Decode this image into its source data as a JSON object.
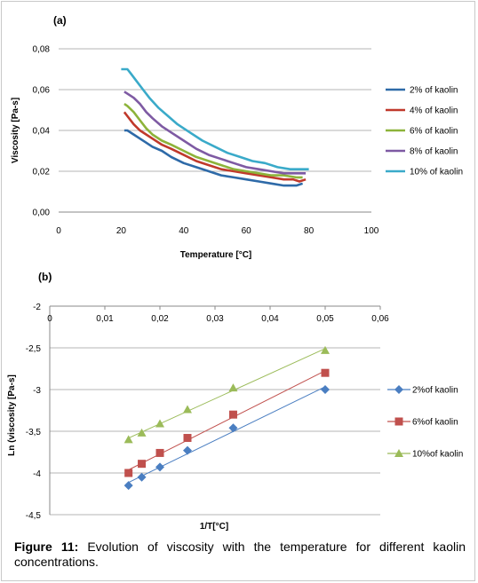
{
  "caption": {
    "label": "Figure 11:",
    "text": " Evolution of viscosity with the temperature for different kaolin concentrations."
  },
  "chart_data": [
    {
      "panel": "(a)",
      "type": "line",
      "xlabel": "Temperature [°C]",
      "ylabel": "Viscosity [Pa-s]",
      "xlim": [
        0,
        100
      ],
      "ylim": [
        0,
        0.08
      ],
      "x_ticks": [
        "0",
        "20",
        "40",
        "60",
        "80",
        "100"
      ],
      "y_ticks": [
        "0,00",
        "0,02",
        "0,04",
        "0,06",
        "0,08"
      ],
      "grid": "horizontal",
      "legend": "right",
      "series": [
        {
          "name": "2% of kaolin",
          "color": "#2e6aa8",
          "x": [
            21,
            22,
            24,
            26,
            28,
            30,
            33,
            36,
            40,
            44,
            48,
            52,
            56,
            60,
            64,
            68,
            72,
            76,
            78
          ],
          "y": [
            0.04,
            0.04,
            0.038,
            0.036,
            0.034,
            0.032,
            0.03,
            0.027,
            0.024,
            0.022,
            0.02,
            0.018,
            0.017,
            0.016,
            0.015,
            0.014,
            0.013,
            0.013,
            0.014
          ]
        },
        {
          "name": "4% of kaolin",
          "color": "#c0392b",
          "x": [
            21,
            22,
            24,
            26,
            28,
            30,
            33,
            36,
            40,
            44,
            48,
            52,
            56,
            60,
            64,
            68,
            72,
            75,
            77,
            79
          ],
          "y": [
            0.049,
            0.047,
            0.043,
            0.04,
            0.038,
            0.036,
            0.033,
            0.031,
            0.028,
            0.025,
            0.023,
            0.021,
            0.02,
            0.019,
            0.018,
            0.017,
            0.016,
            0.016,
            0.015,
            0.016
          ]
        },
        {
          "name": "6% of kaolin",
          "color": "#8db33a",
          "x": [
            21,
            22,
            24,
            26,
            28,
            30,
            33,
            36,
            40,
            44,
            48,
            52,
            56,
            60,
            64,
            68,
            72,
            76,
            78
          ],
          "y": [
            0.053,
            0.052,
            0.049,
            0.045,
            0.041,
            0.038,
            0.035,
            0.033,
            0.03,
            0.027,
            0.025,
            0.023,
            0.021,
            0.02,
            0.019,
            0.018,
            0.018,
            0.017,
            0.017
          ]
        },
        {
          "name": "8% of kaolin",
          "color": "#7e5aa3",
          "x": [
            21,
            22,
            24,
            26,
            28,
            30,
            33,
            36,
            40,
            44,
            48,
            52,
            56,
            60,
            64,
            68,
            72,
            76,
            79
          ],
          "y": [
            0.059,
            0.058,
            0.056,
            0.053,
            0.049,
            0.046,
            0.042,
            0.039,
            0.035,
            0.031,
            0.028,
            0.026,
            0.024,
            0.022,
            0.021,
            0.02,
            0.019,
            0.019,
            0.019
          ]
        },
        {
          "name": "10% of kaolin",
          "color": "#3aaac9",
          "x": [
            20,
            22,
            23,
            25,
            27,
            29,
            32,
            35,
            38,
            42,
            46,
            50,
            54,
            58,
            62,
            66,
            70,
            74,
            78,
            80
          ],
          "y": [
            0.07,
            0.07,
            0.068,
            0.064,
            0.06,
            0.056,
            0.051,
            0.047,
            0.043,
            0.039,
            0.035,
            0.032,
            0.029,
            0.027,
            0.025,
            0.024,
            0.022,
            0.021,
            0.021,
            0.021
          ]
        }
      ]
    },
    {
      "panel": "(b)",
      "type": "scatter",
      "xlabel": "1/T[°C]",
      "ylabel": "Ln (viscosity [Pa-s]",
      "xlim": [
        0,
        0.06
      ],
      "ylim": [
        -4.5,
        -2
      ],
      "x_ticks": [
        "0",
        "0,01",
        "0,02",
        "0,03",
        "0,04",
        "0,05",
        "0,06"
      ],
      "y_ticks": [
        "-2",
        "-2,5",
        "-3",
        "-3,5",
        "-4",
        "-4,5"
      ],
      "grid": "horizontal",
      "legend": "right",
      "trendlines": true,
      "series": [
        {
          "name": "2%of kaolin",
          "color": "#4a7ec1",
          "marker": "diamond",
          "x": [
            0.0143,
            0.0167,
            0.02,
            0.025,
            0.0333,
            0.05
          ],
          "y": [
            -4.15,
            -4.05,
            -3.93,
            -3.73,
            -3.46,
            -3.0
          ]
        },
        {
          "name": "6%of kaolin",
          "color": "#c0504d",
          "marker": "square",
          "x": [
            0.0143,
            0.0167,
            0.02,
            0.025,
            0.0333,
            0.05
          ],
          "y": [
            -4.0,
            -3.89,
            -3.76,
            -3.58,
            -3.3,
            -2.8
          ]
        },
        {
          "name": "10%of kaolin",
          "color": "#9bbb59",
          "marker": "triangle",
          "x": [
            0.0143,
            0.0167,
            0.02,
            0.025,
            0.0333,
            0.05
          ],
          "y": [
            -3.6,
            -3.52,
            -3.41,
            -3.24,
            -2.98,
            -2.53
          ]
        }
      ]
    }
  ]
}
